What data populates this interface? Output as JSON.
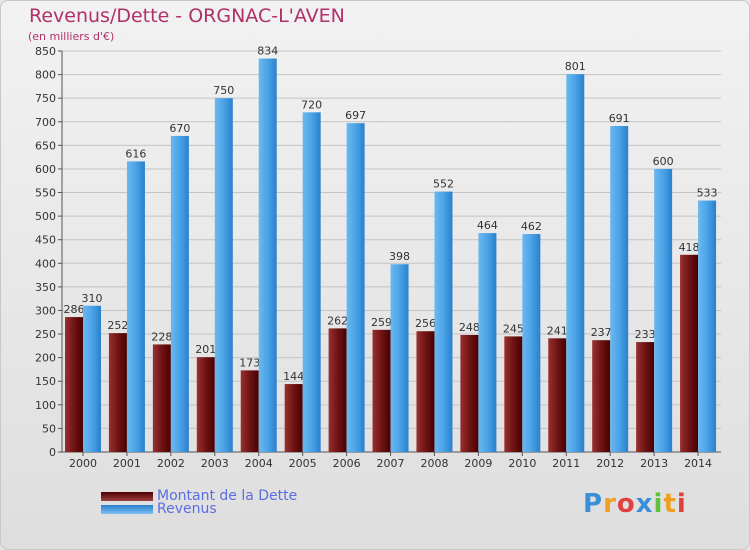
{
  "chart_data": {
    "type": "bar",
    "title": "Revenus/Dette - ORGNAC-L'AVEN",
    "subtitle": "(en milliers d'€)",
    "categories": [
      "2000",
      "2001",
      "2002",
      "2003",
      "2004",
      "2005",
      "2006",
      "2007",
      "2008",
      "2009",
      "2010",
      "2011",
      "2012",
      "2013",
      "2014"
    ],
    "series": [
      {
        "name": "Montant de la Dette",
        "color": "#7a1a1a",
        "values": [
          286,
          252,
          228,
          201,
          173,
          144,
          262,
          259,
          256,
          248,
          245,
          241,
          237,
          233,
          418
        ]
      },
      {
        "name": "Revenus",
        "color": "#4aa3e6",
        "values": [
          310,
          616,
          670,
          750,
          834,
          720,
          697,
          398,
          552,
          464,
          462,
          801,
          691,
          600,
          533
        ]
      }
    ],
    "ylim": [
      0,
      850
    ],
    "yticks": [
      0,
      50,
      100,
      150,
      200,
      250,
      300,
      350,
      400,
      450,
      500,
      550,
      600,
      650,
      700,
      750,
      800,
      850
    ],
    "grid": true,
    "legend": "bottom-left"
  },
  "logo": {
    "text": "Proxiti",
    "colors": [
      "#3a8fd8",
      "#f0a020",
      "#e04040",
      "#3a8fd8",
      "#60c040",
      "#f0a020",
      "#e04040"
    ]
  }
}
